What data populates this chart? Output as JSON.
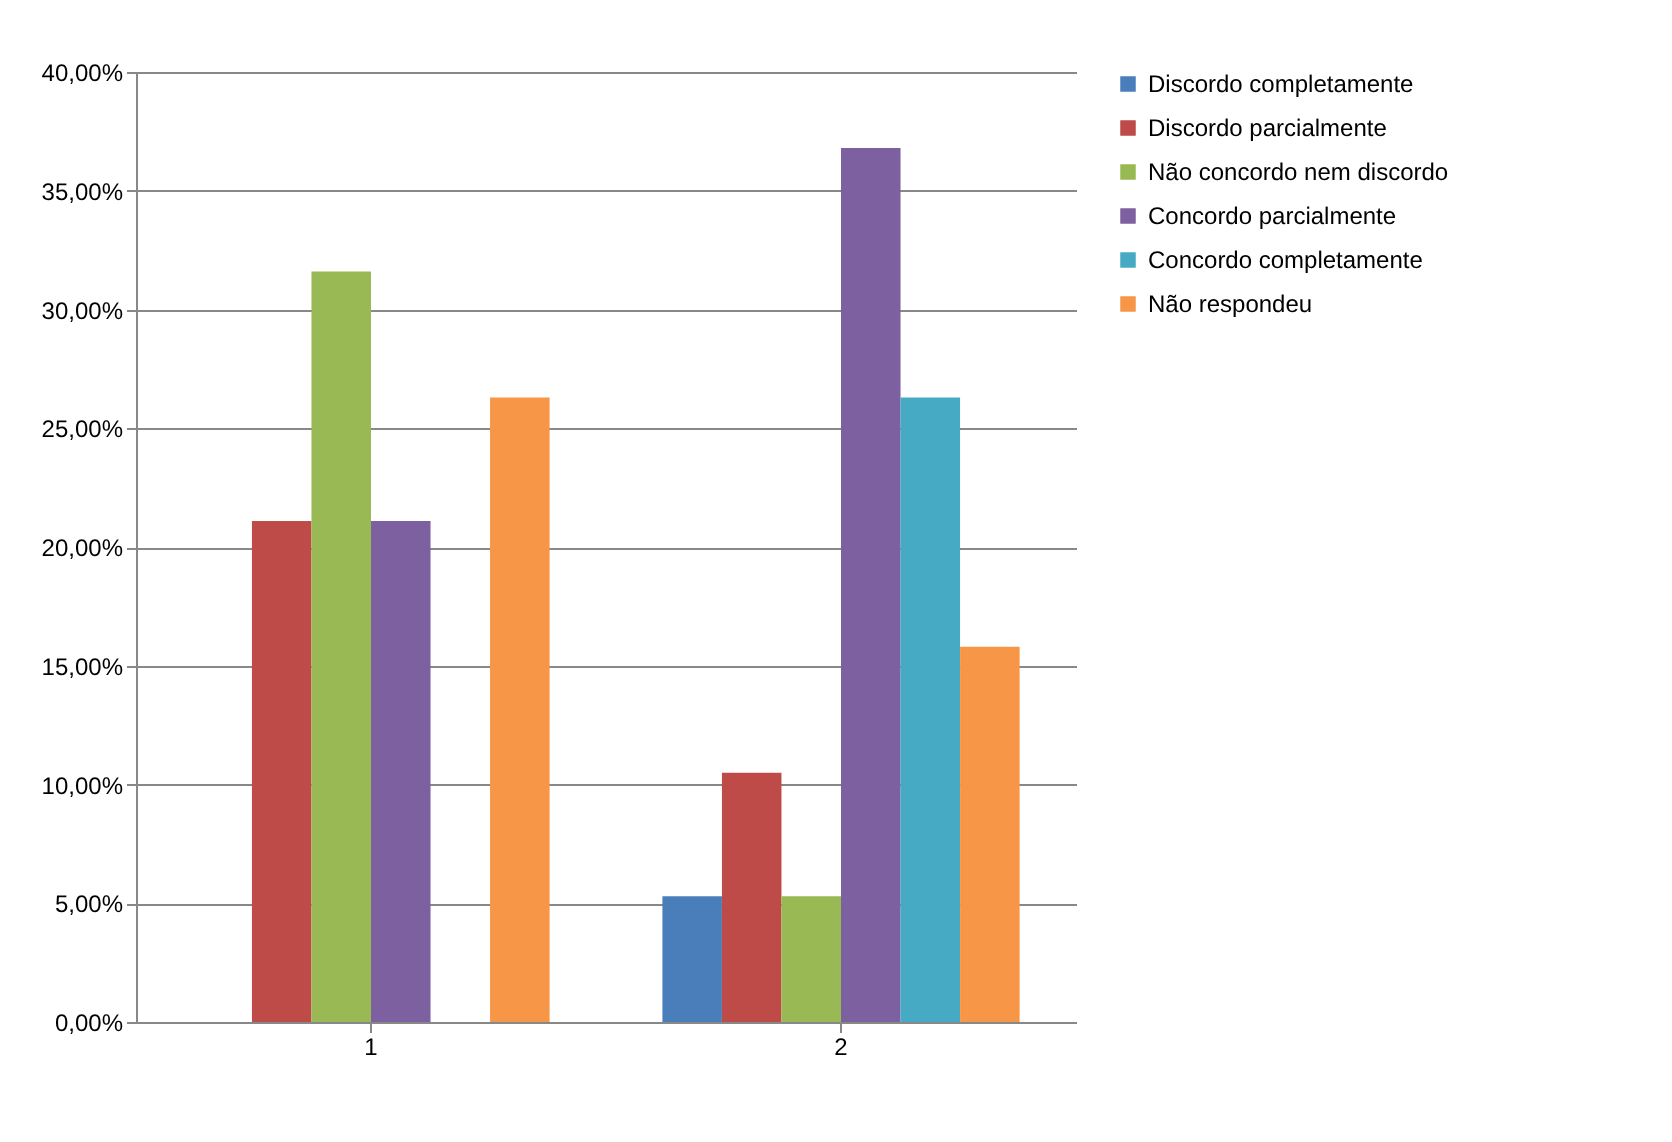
{
  "chart_data": {
    "type": "bar",
    "categories": [
      "1",
      "2"
    ],
    "series": [
      {
        "name": "Discordo completamente",
        "color": "#4a7ebb",
        "values": [
          0,
          5.3
        ]
      },
      {
        "name": "Discordo parcialmente",
        "color": "#be4b48",
        "values": [
          21.1,
          10.5
        ]
      },
      {
        "name": "Não concordo nem discordo",
        "color": "#98b954",
        "values": [
          31.6,
          5.3
        ]
      },
      {
        "name": "Concordo parcialmente",
        "color": "#7d60a0",
        "values": [
          21.1,
          36.8
        ]
      },
      {
        "name": "Concordo completamente",
        "color": "#46aac5",
        "values": [
          0,
          26.3
        ]
      },
      {
        "name": "Não respondeu",
        "color": "#f79646",
        "values": [
          26.3,
          15.8
        ]
      }
    ],
    "ylim": [
      0,
      40
    ],
    "yticks": [
      {
        "value": 0,
        "label": "0,00%"
      },
      {
        "value": 5,
        "label": "5,00%"
      },
      {
        "value": 10,
        "label": "10,00%"
      },
      {
        "value": 15,
        "label": "15,00%"
      },
      {
        "value": 20,
        "label": "20,00%"
      },
      {
        "value": 25,
        "label": "25,00%"
      },
      {
        "value": 30,
        "label": "30,00%"
      },
      {
        "value": 35,
        "label": "35,00%"
      },
      {
        "value": 40,
        "label": "40,00%"
      }
    ],
    "grid": "y",
    "legend": "right"
  }
}
